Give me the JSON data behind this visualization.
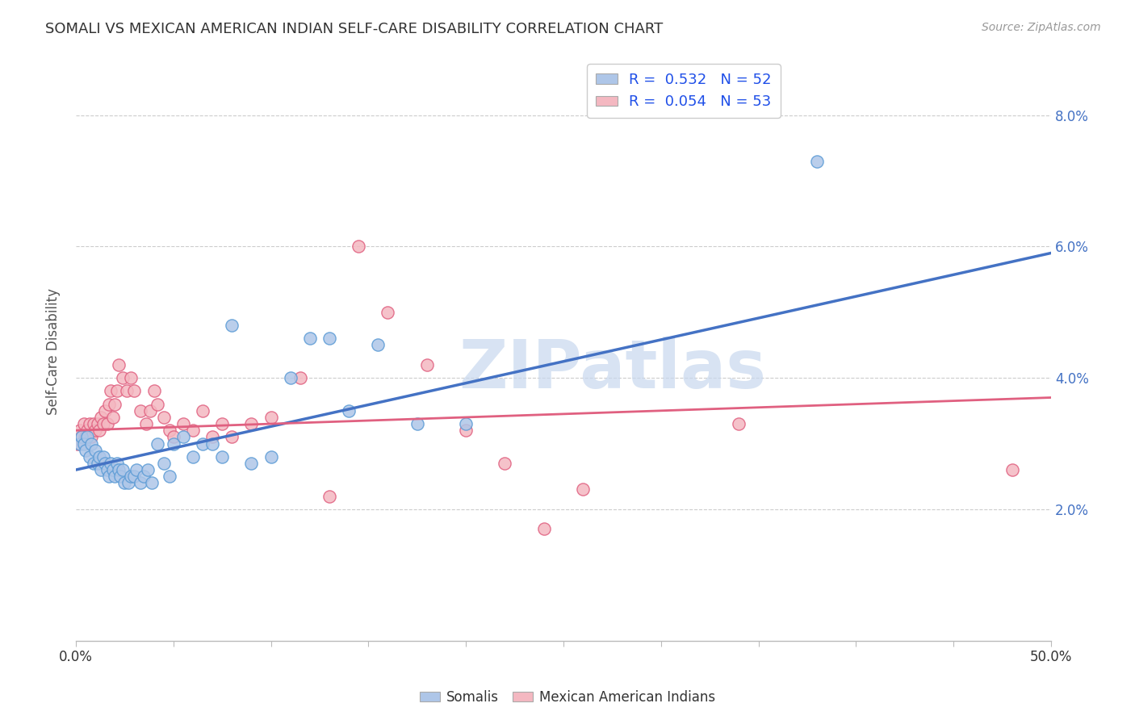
{
  "title": "SOMALI VS MEXICAN AMERICAN INDIAN SELF-CARE DISABILITY CORRELATION CHART",
  "source": "Source: ZipAtlas.com",
  "ylabel": "Self-Care Disability",
  "xlim": [
    0.0,
    0.5
  ],
  "ylim": [
    0.0,
    0.088
  ],
  "yticks": [
    0.02,
    0.04,
    0.06,
    0.08
  ],
  "ytick_labels": [
    "2.0%",
    "4.0%",
    "6.0%",
    "8.0%"
  ],
  "xticks": [
    0.0,
    0.05,
    0.1,
    0.15,
    0.2,
    0.25,
    0.3,
    0.35,
    0.4,
    0.45,
    0.5
  ],
  "xtick_labels_show": [
    "0.0%",
    "",
    "",
    "",
    "",
    "",
    "",
    "",
    "",
    "",
    "50.0%"
  ],
  "somali_R": "0.532",
  "somali_N": "52",
  "mexican_R": "0.054",
  "mexican_N": "53",
  "somali_color": "#aec6e8",
  "somali_edge": "#5b9bd5",
  "mexican_color": "#f4b8c1",
  "mexican_edge": "#e06080",
  "somali_line_color": "#4472c4",
  "mexican_line_color": "#e06080",
  "watermark": "ZIPatlas",
  "watermark_color": "#c8d8ee",
  "legend_color": "#1f4fe8",
  "somali_x": [
    0.002,
    0.003,
    0.004,
    0.005,
    0.006,
    0.007,
    0.008,
    0.009,
    0.01,
    0.011,
    0.012,
    0.013,
    0.014,
    0.015,
    0.016,
    0.017,
    0.018,
    0.019,
    0.02,
    0.021,
    0.022,
    0.023,
    0.024,
    0.025,
    0.027,
    0.028,
    0.03,
    0.031,
    0.033,
    0.035,
    0.037,
    0.039,
    0.042,
    0.045,
    0.048,
    0.05,
    0.055,
    0.06,
    0.065,
    0.07,
    0.075,
    0.08,
    0.09,
    0.1,
    0.11,
    0.12,
    0.13,
    0.14,
    0.155,
    0.175,
    0.2,
    0.38
  ],
  "somali_y": [
    0.03,
    0.031,
    0.03,
    0.029,
    0.031,
    0.028,
    0.03,
    0.027,
    0.029,
    0.027,
    0.028,
    0.026,
    0.028,
    0.027,
    0.026,
    0.025,
    0.027,
    0.026,
    0.025,
    0.027,
    0.026,
    0.025,
    0.026,
    0.024,
    0.024,
    0.025,
    0.025,
    0.026,
    0.024,
    0.025,
    0.026,
    0.024,
    0.03,
    0.027,
    0.025,
    0.03,
    0.031,
    0.028,
    0.03,
    0.03,
    0.028,
    0.048,
    0.027,
    0.028,
    0.04,
    0.046,
    0.046,
    0.035,
    0.045,
    0.033,
    0.033,
    0.073
  ],
  "mexican_x": [
    0.001,
    0.002,
    0.003,
    0.004,
    0.005,
    0.006,
    0.007,
    0.008,
    0.009,
    0.01,
    0.011,
    0.012,
    0.013,
    0.014,
    0.015,
    0.016,
    0.017,
    0.018,
    0.019,
    0.02,
    0.021,
    0.022,
    0.024,
    0.026,
    0.028,
    0.03,
    0.033,
    0.036,
    0.038,
    0.04,
    0.042,
    0.045,
    0.048,
    0.05,
    0.055,
    0.06,
    0.065,
    0.07,
    0.075,
    0.08,
    0.09,
    0.1,
    0.115,
    0.13,
    0.145,
    0.16,
    0.18,
    0.2,
    0.22,
    0.24,
    0.26,
    0.34,
    0.48
  ],
  "mexican_y": [
    0.03,
    0.032,
    0.031,
    0.033,
    0.031,
    0.032,
    0.033,
    0.031,
    0.033,
    0.032,
    0.033,
    0.032,
    0.034,
    0.033,
    0.035,
    0.033,
    0.036,
    0.038,
    0.034,
    0.036,
    0.038,
    0.042,
    0.04,
    0.038,
    0.04,
    0.038,
    0.035,
    0.033,
    0.035,
    0.038,
    0.036,
    0.034,
    0.032,
    0.031,
    0.033,
    0.032,
    0.035,
    0.031,
    0.033,
    0.031,
    0.033,
    0.034,
    0.04,
    0.022,
    0.06,
    0.05,
    0.042,
    0.032,
    0.027,
    0.017,
    0.023,
    0.033,
    0.026
  ],
  "somali_line_x": [
    0.0,
    0.5
  ],
  "somali_line_y": [
    0.026,
    0.059
  ],
  "mexican_line_x": [
    0.0,
    0.5
  ],
  "mexican_line_y": [
    0.032,
    0.037
  ]
}
